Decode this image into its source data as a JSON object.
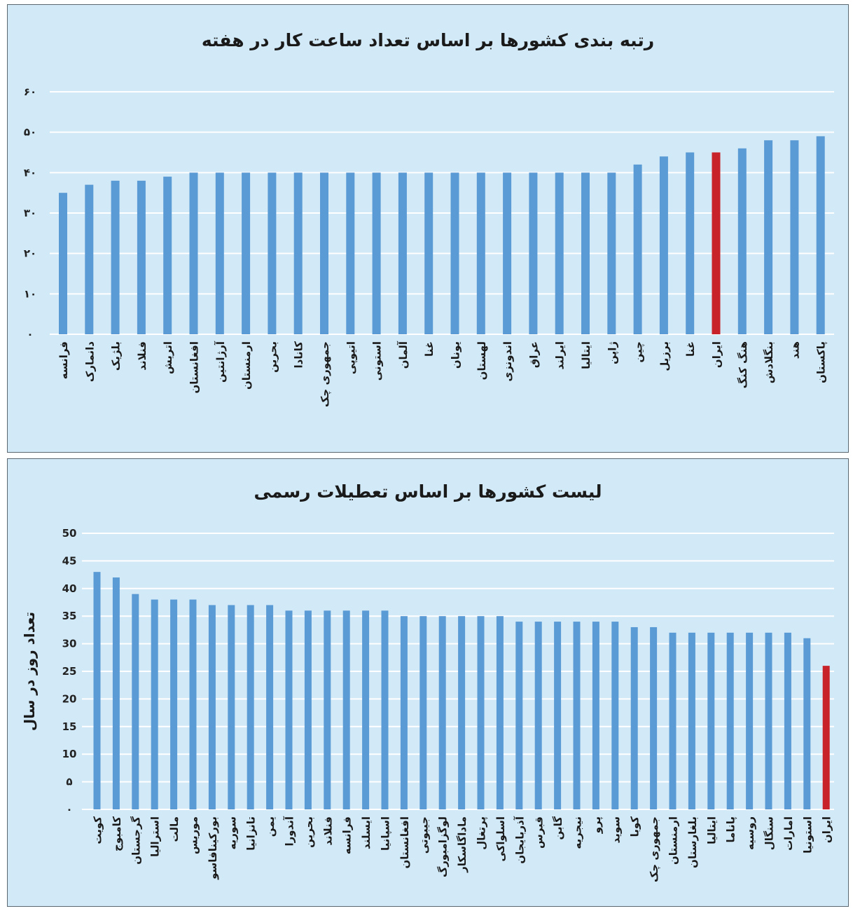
{
  "colors": {
    "panel_bg": "#d2e9f7",
    "bar": "#5b9bd5",
    "highlight_bar": "#c8222a",
    "grid": "#ffffff"
  },
  "chart_data": [
    {
      "type": "bar",
      "title": "رتبه بندی کشورها بر اساس تعداد ساعت کار در هفته",
      "xlabel": "",
      "ylabel": "",
      "ylim": [
        0,
        60
      ],
      "yticks": [
        0,
        10,
        20,
        30,
        40,
        50,
        60
      ],
      "ytick_labels": [
        "۰",
        "۱۰",
        "۲۰",
        "۳۰",
        "۴۰",
        "۵۰",
        "۶۰"
      ],
      "grid": true,
      "highlight": "ایران",
      "categories": [
        "فرانسه",
        "دانمارک",
        "بلژیک",
        "فنلاند",
        "اتریش",
        "افغانستان",
        "آرژانتین",
        "ارمنستان",
        "بحرین",
        "کانادا",
        "جمهوری چک",
        "اتیوپی",
        "استونی",
        "آلمان",
        "غنا",
        "یونان",
        "لهستان",
        "اندونزی",
        "عراق",
        "ایرلند",
        "ایتالیا",
        "ژاپن",
        "چین",
        "برزیل",
        "غنا",
        "ایران",
        "هنگ کنگ",
        "بنگلادش",
        "هند",
        "پاکستان"
      ],
      "values": [
        35,
        37,
        38,
        38,
        39,
        40,
        40,
        40,
        40,
        40,
        40,
        40,
        40,
        40,
        40,
        40,
        40,
        40,
        40,
        40,
        40,
        40,
        42,
        44,
        45,
        45,
        46,
        48,
        48,
        49
      ]
    },
    {
      "type": "bar",
      "title": "لیست کشورها بر اساس تعطیلات رسمی",
      "xlabel": "",
      "ylabel": "تعداد روز در سال",
      "ylim": [
        0,
        50
      ],
      "yticks": [
        0,
        5,
        10,
        15,
        20,
        25,
        30,
        35,
        40,
        45,
        50
      ],
      "ytick_labels": [
        "۰",
        "۵",
        "10",
        "15",
        "20",
        "25",
        "30",
        "35",
        "40",
        "45",
        "50"
      ],
      "grid": true,
      "highlight": "ایران",
      "categories": [
        "کویت",
        "کامبوج",
        "گرجستان",
        "استرالیا",
        "مالت",
        "موریس",
        "بورکینافاسو",
        "سوریه",
        "تانزانیا",
        "یمن",
        "آندورا",
        "بحرین",
        "فنلاند",
        "فرانسه",
        "ایسلند",
        "اسپانیا",
        "افغانستان",
        "جیبوتی",
        "لوگزامبورگ",
        "ماداگاسکار",
        "پرتغال",
        "اسلواکی",
        "آذربایجان",
        "قبرس",
        "گابن",
        "نیجریه",
        "پرو",
        "سوید",
        "کوبا",
        "جمهوری چک",
        "ارمنستان",
        "بلغارستان",
        "ایتالیا",
        "پاناما",
        "روسیه",
        "سنگال",
        "امارات",
        "استونیا",
        "ایران"
      ],
      "values": [
        43,
        42,
        39,
        38,
        38,
        38,
        37,
        37,
        37,
        37,
        36,
        36,
        36,
        36,
        36,
        36,
        35,
        35,
        35,
        35,
        35,
        35,
        34,
        34,
        34,
        34,
        34,
        34,
        33,
        33,
        32,
        32,
        32,
        32,
        32,
        32,
        32,
        31,
        26
      ]
    }
  ]
}
